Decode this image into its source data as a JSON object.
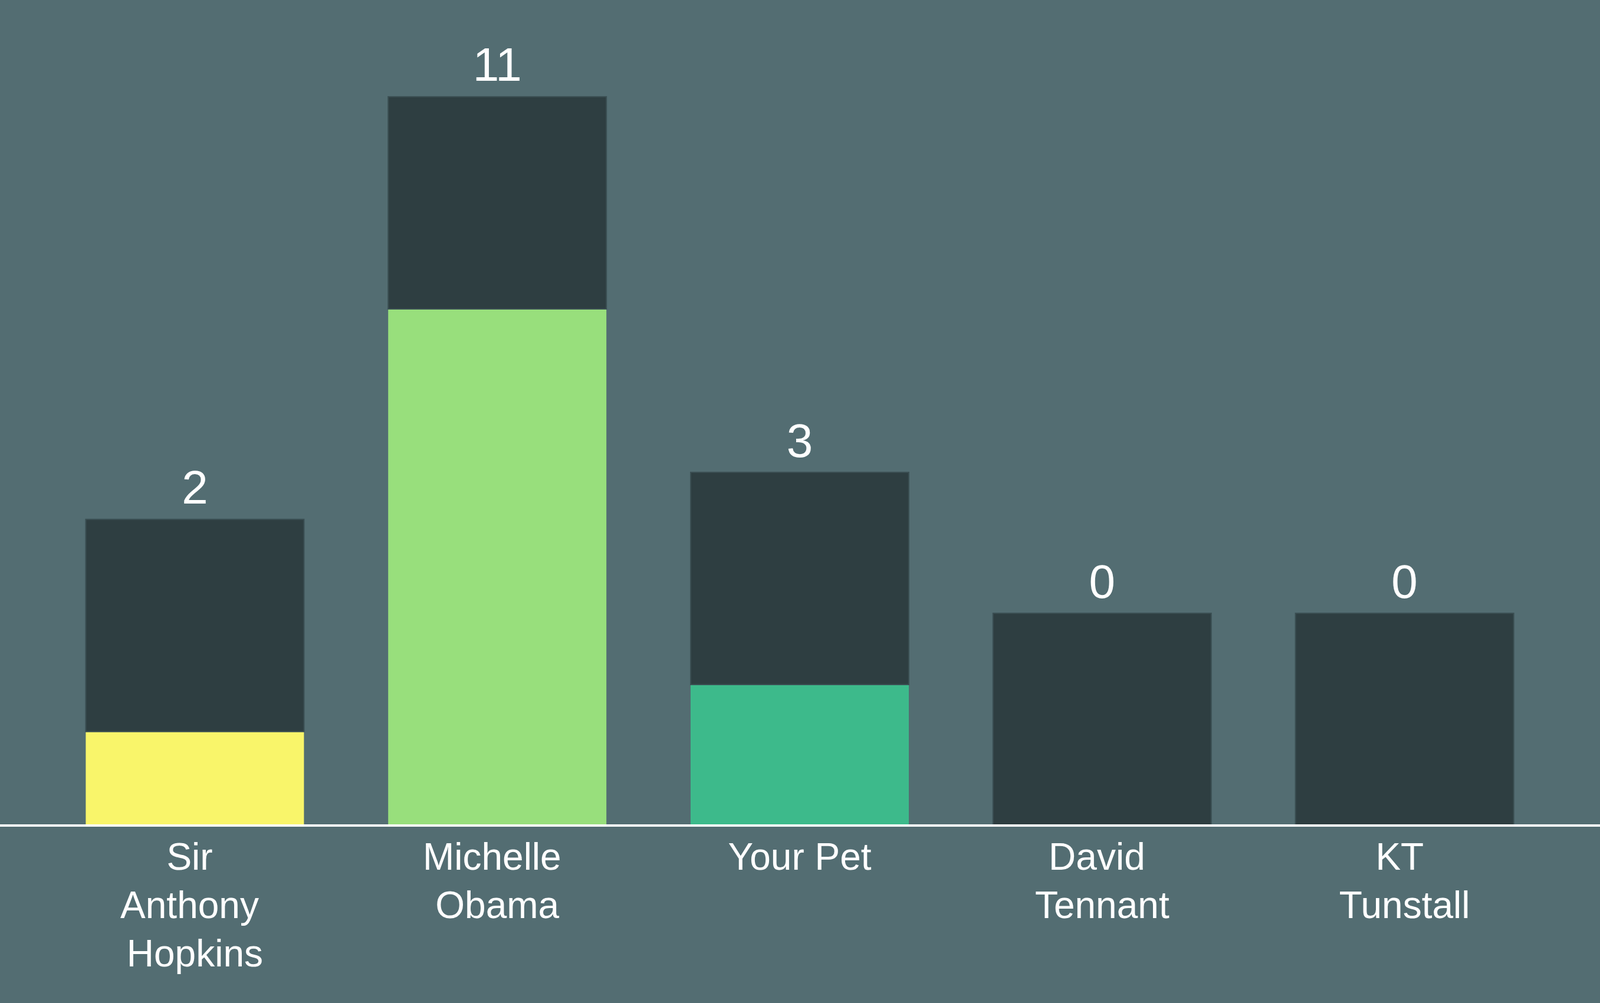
{
  "chart_data": {
    "type": "bar",
    "categories": [
      "Sir Anthony Hopkins",
      "Michelle Obama",
      "Your Pet",
      "David Tennant",
      "KT Tunstall"
    ],
    "values": [
      2,
      11,
      3,
      0,
      0
    ],
    "colors": [
      "#f9f56a",
      "#98df7c",
      "#3dba8b",
      "#22a39a",
      "#2a8a9c"
    ],
    "ylim": [
      0,
      17
    ],
    "grid": false,
    "data_labels": true,
    "tick_labels": "x"
  }
}
